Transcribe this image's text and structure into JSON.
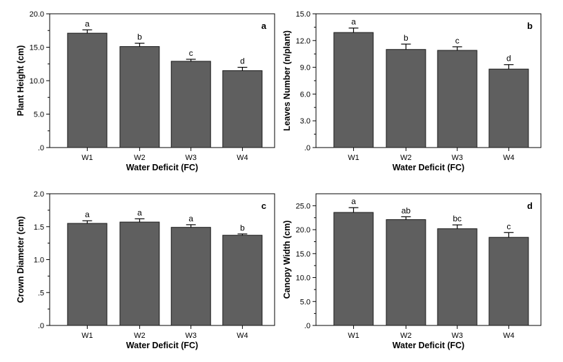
{
  "figure": {
    "background": "#ffffff",
    "bar_fill": "#5f5f5f",
    "bar_stroke": "#1a1a1a"
  },
  "chart_data": [
    {
      "type": "bar",
      "panel_label": "a",
      "categories": [
        "W1",
        "W2",
        "W3",
        "W4"
      ],
      "values": [
        17.1,
        15.1,
        12.9,
        11.5
      ],
      "errors": [
        0.5,
        0.5,
        0.3,
        0.5
      ],
      "letters": [
        "a",
        "b",
        "c",
        "d"
      ],
      "xlabel": "Water Deficit (FC)",
      "ylabel": "Plant Height (cm)",
      "ylim": [
        0,
        20
      ],
      "yticks": [
        0,
        5,
        10,
        15,
        20
      ],
      "yticklabels": [
        ".0",
        "5.0",
        "10.0",
        "15.0",
        "20.0"
      ]
    },
    {
      "type": "bar",
      "panel_label": "b",
      "categories": [
        "W1",
        "W2",
        "W3",
        "W4"
      ],
      "values": [
        12.9,
        11.0,
        10.9,
        8.8
      ],
      "errors": [
        0.5,
        0.6,
        0.4,
        0.5
      ],
      "letters": [
        "a",
        "b",
        "c",
        "d"
      ],
      "xlabel": "Water Deficit (FC)",
      "ylabel": "Leaves Number (n/plant)",
      "ylim": [
        0,
        15
      ],
      "yticks": [
        0,
        3,
        6,
        9,
        12,
        15
      ],
      "yticklabels": [
        ".0",
        "3.0",
        "6.0",
        "9.0",
        "12.0",
        "15.0"
      ]
    },
    {
      "type": "bar",
      "panel_label": "c",
      "categories": [
        "W1",
        "W2",
        "W3",
        "W4"
      ],
      "values": [
        1.55,
        1.57,
        1.49,
        1.37
      ],
      "errors": [
        0.04,
        0.05,
        0.04,
        0.02
      ],
      "letters": [
        "a",
        "a",
        "a",
        "b"
      ],
      "xlabel": "Water Deficit (FC)",
      "ylabel": "Crown Diameter (cm)",
      "ylim": [
        0,
        2
      ],
      "yticks": [
        0,
        0.5,
        1,
        1.5,
        2
      ],
      "yticklabels": [
        ".0",
        ".5",
        "1.0",
        "1.5",
        "2.0"
      ]
    },
    {
      "type": "bar",
      "panel_label": "d",
      "categories": [
        "W1",
        "W2",
        "W3",
        "W4"
      ],
      "values": [
        23.6,
        22.1,
        20.2,
        18.4
      ],
      "errors": [
        1.0,
        0.6,
        0.8,
        1.0
      ],
      "letters": [
        "a",
        "ab",
        "bc",
        "c"
      ],
      "xlabel": "Water Deficit (FC)",
      "ylabel": "Canopy Width (cm)",
      "ylim": [
        0,
        27.5
      ],
      "yticks": [
        0,
        5,
        10,
        15,
        20,
        25
      ],
      "yticklabels": [
        ".0",
        "5.0",
        "10.0",
        "15.0",
        "20.0",
        "25.0"
      ]
    }
  ]
}
